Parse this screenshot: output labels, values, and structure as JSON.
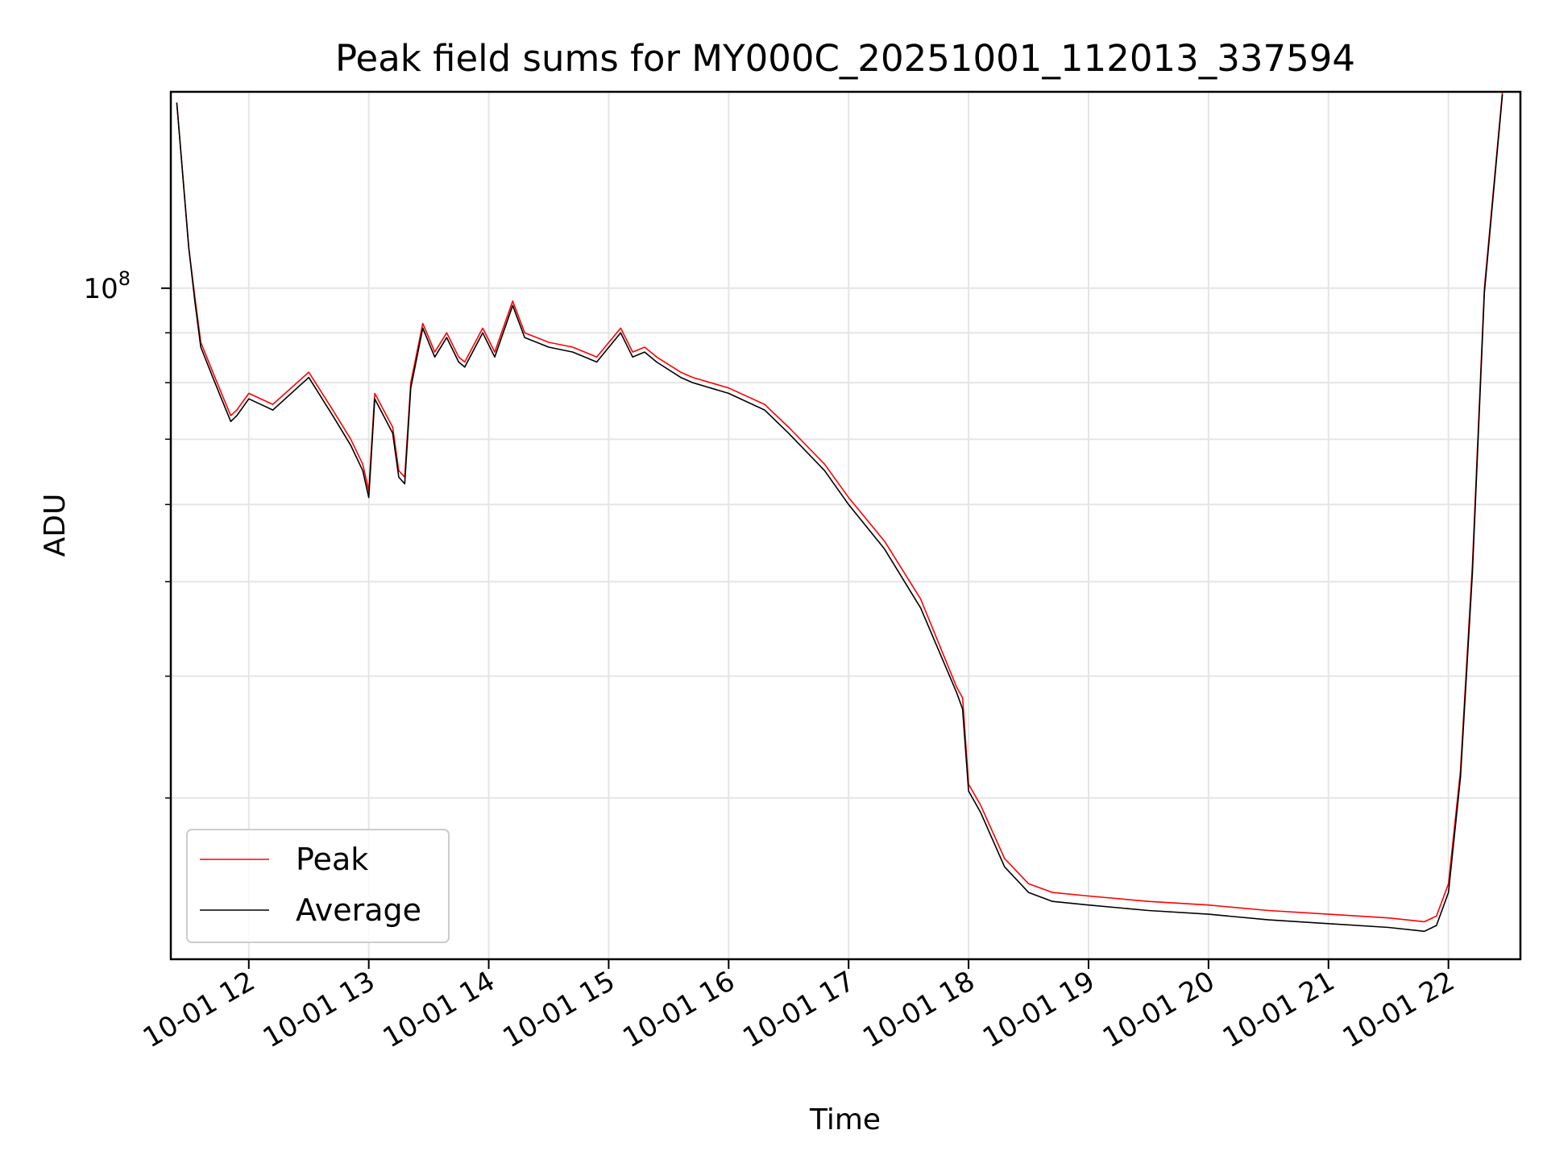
{
  "chart_data": {
    "type": "line",
    "title": "Peak field sums for MY000C_20251001_112013_337594",
    "xlabel": "Time",
    "ylabel": "ADU",
    "y_scale": "log",
    "ylim": [
      20500000,
      159000000
    ],
    "xlim": [
      11.35,
      22.6
    ],
    "grid": true,
    "legend_position": "lower-left",
    "x_ticks": [
      {
        "value": 12,
        "label": "10-01 12"
      },
      {
        "value": 13,
        "label": "10-01 13"
      },
      {
        "value": 14,
        "label": "10-01 14"
      },
      {
        "value": 15,
        "label": "10-01 15"
      },
      {
        "value": 16,
        "label": "10-01 16"
      },
      {
        "value": 17,
        "label": "10-01 17"
      },
      {
        "value": 18,
        "label": "10-01 18"
      },
      {
        "value": 19,
        "label": "10-01 19"
      },
      {
        "value": 20,
        "label": "10-01 20"
      },
      {
        "value": 21,
        "label": "10-01 21"
      },
      {
        "value": 22,
        "label": "10-01 22"
      }
    ],
    "y_major_ticks": [
      {
        "value": 100000000,
        "base": "10",
        "exponent": "8"
      }
    ],
    "y_minor_ticks": [
      30000000,
      40000000,
      50000000,
      60000000,
      70000000,
      80000000,
      90000000,
      200000000
    ],
    "series": [
      {
        "name": "Peak",
        "color": "#ff0000",
        "x": [
          11.4,
          11.5,
          11.55,
          11.6,
          11.7,
          11.85,
          11.9,
          12.0,
          12.2,
          12.5,
          12.7,
          12.85,
          12.95,
          13.0,
          13.05,
          13.2,
          13.25,
          13.3,
          13.35,
          13.45,
          13.55,
          13.65,
          13.75,
          13.8,
          13.95,
          14.05,
          14.2,
          14.3,
          14.5,
          14.7,
          14.8,
          14.9,
          15.1,
          15.2,
          15.3,
          15.4,
          15.6,
          15.7,
          16.0,
          16.3,
          16.5,
          16.8,
          17.0,
          17.3,
          17.6,
          17.9,
          17.95,
          18.0,
          18.1,
          18.3,
          18.5,
          18.7,
          19.0,
          19.5,
          20.0,
          20.5,
          21.0,
          21.5,
          21.8,
          21.9,
          22.0,
          22.1,
          22.2,
          22.3,
          22.45
        ],
        "values": [
          155000000,
          110000000,
          98000000,
          88000000,
          82000000,
          74000000,
          75000000,
          78000000,
          76000000,
          82000000,
          75000000,
          70000000,
          66000000,
          62000000,
          78000000,
          72000000,
          65000000,
          64000000,
          80000000,
          92000000,
          86000000,
          90000000,
          85000000,
          84000000,
          91000000,
          86000000,
          97000000,
          90000000,
          88000000,
          87000000,
          86000000,
          85000000,
          91000000,
          86000000,
          87000000,
          85000000,
          82000000,
          81000000,
          79000000,
          76000000,
          72000000,
          66000000,
          61000000,
          55000000,
          48000000,
          39000000,
          38000000,
          31000000,
          29500000,
          26000000,
          24500000,
          24000000,
          23800000,
          23500000,
          23300000,
          23000000,
          22800000,
          22600000,
          22400000,
          22700000,
          24500000,
          32000000,
          52000000,
          100000000,
          159000000
        ]
      },
      {
        "name": "Average",
        "color": "#000000",
        "x": [
          11.4,
          11.5,
          11.55,
          11.6,
          11.7,
          11.85,
          11.9,
          12.0,
          12.2,
          12.5,
          12.7,
          12.85,
          12.95,
          13.0,
          13.05,
          13.2,
          13.25,
          13.3,
          13.35,
          13.45,
          13.55,
          13.65,
          13.75,
          13.8,
          13.95,
          14.05,
          14.2,
          14.3,
          14.5,
          14.7,
          14.8,
          14.9,
          15.1,
          15.2,
          15.3,
          15.4,
          15.6,
          15.7,
          16.0,
          16.3,
          16.5,
          16.8,
          17.0,
          17.3,
          17.6,
          17.9,
          17.95,
          18.0,
          18.1,
          18.3,
          18.5,
          18.7,
          19.0,
          19.5,
          20.0,
          20.5,
          21.0,
          21.5,
          21.8,
          21.9,
          22.0,
          22.1,
          22.2,
          22.3,
          22.45
        ],
        "values": [
          155000000,
          110000000,
          97000000,
          87000000,
          81000000,
          73000000,
          74000000,
          77000000,
          75000000,
          81000000,
          74000000,
          69000000,
          65000000,
          61000000,
          77000000,
          71000000,
          64000000,
          63000000,
          79000000,
          91000000,
          85000000,
          89000000,
          84000000,
          83000000,
          90000000,
          85000000,
          96000000,
          89000000,
          87000000,
          86000000,
          85000000,
          84000000,
          90000000,
          85000000,
          86000000,
          84000000,
          81000000,
          80000000,
          78000000,
          75000000,
          71000000,
          65000000,
          60000000,
          54000000,
          47000000,
          38500000,
          37000000,
          30500000,
          29000000,
          25500000,
          24000000,
          23500000,
          23300000,
          23000000,
          22800000,
          22500000,
          22300000,
          22100000,
          21900000,
          22200000,
          24000000,
          31500000,
          51000000,
          99000000,
          158000000
        ]
      }
    ],
    "legend": [
      {
        "label": "Peak",
        "color": "#ff0000"
      },
      {
        "label": "Average",
        "color": "#000000"
      }
    ]
  }
}
